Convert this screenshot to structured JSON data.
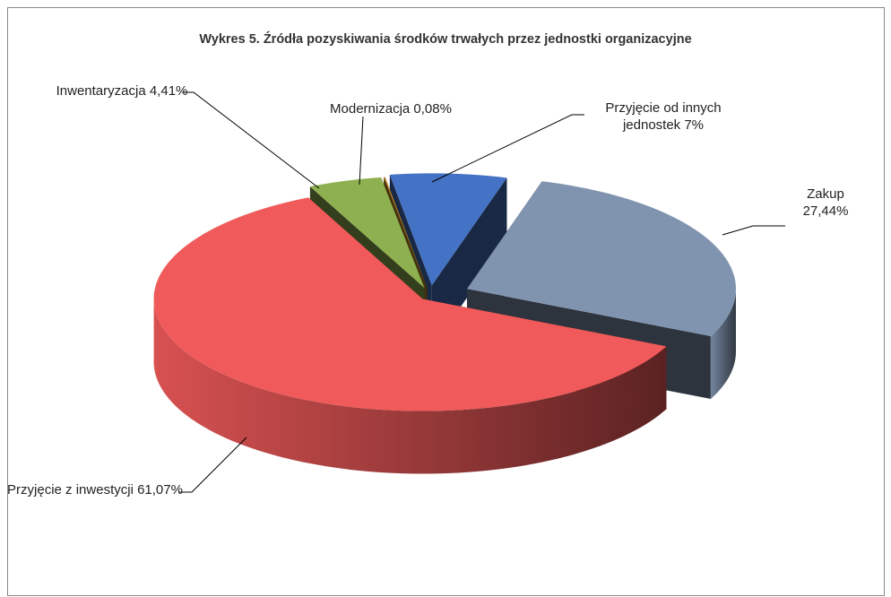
{
  "chart_data": {
    "type": "pie",
    "title": "Wykres 5. Źródła pozyskiwania środków trwałych przez jednostki organizacyjne",
    "categories": [
      "Przyjęcie od innych jednostek",
      "Zakup",
      "Przyjęcie z inwestycji",
      "Inwentaryzacja",
      "Modernizacja"
    ],
    "values": [
      7,
      27.44,
      61.07,
      4.41,
      0.08
    ],
    "value_labels": [
      "7%",
      "27,44%",
      "61,07%",
      "4,41%",
      "0,08%"
    ],
    "colors": [
      "#4472c4",
      "#8094b0",
      "#f05a5a",
      "#8fb050",
      "#c08a2a"
    ]
  }
}
